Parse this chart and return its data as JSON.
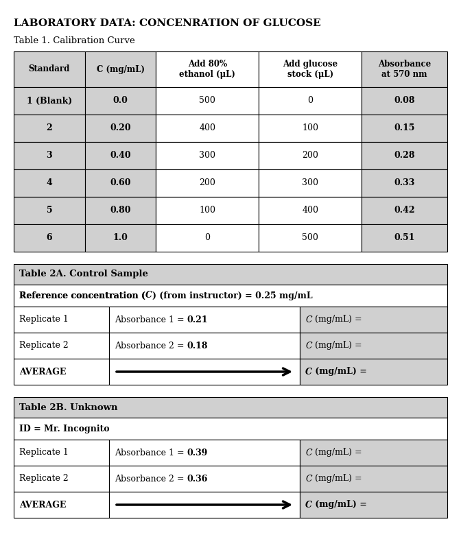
{
  "title": "LABORATORY DATA: CONCENRATION OF GLUCOSE",
  "table1_title": "Table 1. Calibration Curve",
  "table1_headers": [
    "Standard",
    "C (mg/mL)",
    "Add 80%\nethanol (μL)",
    "Add glucose\nstock (μL)",
    "Absorbance\nat 570 nm"
  ],
  "table1_rows": [
    [
      "1 (Blank)",
      "0.0",
      "500",
      "0",
      "0.08"
    ],
    [
      "2",
      "0.20",
      "400",
      "100",
      "0.15"
    ],
    [
      "3",
      "0.40",
      "300",
      "200",
      "0.28"
    ],
    [
      "4",
      "0.60",
      "200",
      "300",
      "0.33"
    ],
    [
      "5",
      "0.80",
      "100",
      "400",
      "0.42"
    ],
    [
      "6",
      "1.0",
      "0",
      "500",
      "0.51"
    ]
  ],
  "table2a_title": "Table 2A. Control Sample",
  "table2a_ref_parts": [
    "Reference concentration (",
    "C",
    ") (from instructor) = 0.25 mg/mL"
  ],
  "table2a_rows": [
    [
      "Replicate 1",
      "Absorbance 1 = ",
      "0.21",
      "C (mg/mL) ="
    ],
    [
      "Replicate 2",
      "Absorbance 2 = ",
      "0.18",
      "C (mg/mL) ="
    ],
    [
      "AVERAGE",
      "",
      "",
      "C (mg/mL) ="
    ]
  ],
  "table2b_title": "Table 2B. Unknown",
  "table2b_id": "ID = Mr. Incognito",
  "table2b_rows": [
    [
      "Replicate 1",
      "Absorbance 1 = ",
      "0.39",
      "C (mg/mL) ="
    ],
    [
      "Replicate 2",
      "Absorbance 2 = ",
      "0.36",
      "C (mg/mL) ="
    ],
    [
      "AVERAGE",
      "",
      "",
      "C (mg/mL) ="
    ]
  ],
  "bg_color": "#ffffff",
  "gray_bg": "#d0d0d0",
  "light_gray": "#e8e8e8",
  "table2_header_bg": "#d0d0d0",
  "white": "#ffffff"
}
